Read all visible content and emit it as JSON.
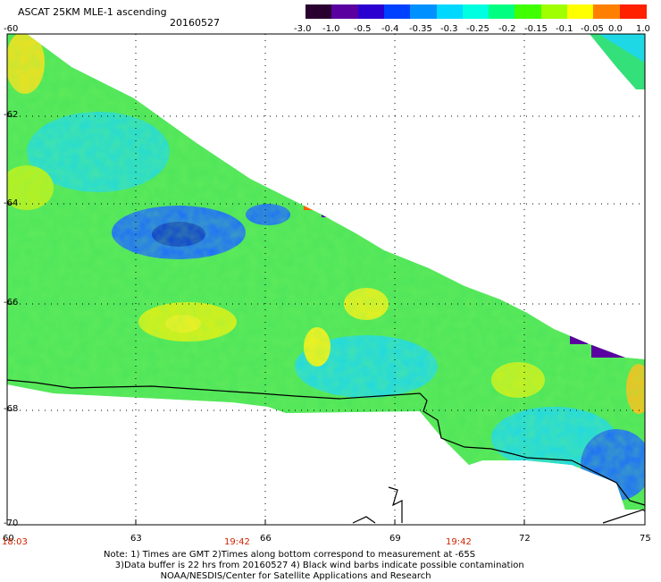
{
  "header": {
    "title": "ASCAT 25KM MLE-1 ascending",
    "date": "20160527"
  },
  "colorbar": {
    "labels": [
      "-3.0",
      "-1.0",
      "-0.5",
      "-0.4",
      "-0.35",
      "-0.3",
      "-0.25",
      "-0.2",
      "-0.15",
      "-0.1",
      "-0.05",
      "0.0",
      "1.0"
    ],
    "colors": [
      "#2a0030",
      "#5a00a0",
      "#2a00d0",
      "#0040ff",
      "#0090ff",
      "#00d8ff",
      "#00ffe0",
      "#00ff80",
      "#40ff00",
      "#a0ff00",
      "#ffff00",
      "#ff8000",
      "#ff2000"
    ]
  },
  "axes": {
    "lat_labels": [
      "-60",
      "-62",
      "-64",
      "-66",
      "-68",
      "-70"
    ],
    "lon_labels": [
      "60",
      "63",
      "66",
      "69",
      "72",
      "75"
    ],
    "time_labels": [
      "18:03",
      "19:42",
      "19:42"
    ]
  },
  "note": {
    "line1": "Note: 1) Times are GMT 2)Times along bottom correspond to measurement at -65S",
    "line2": "3)Data buffer is 22 hrs from 20160527 4) Black wind barbs indicate possible contamination",
    "line3": "NOAA/NESDIS/Center for Satellite Applications and Research"
  }
}
